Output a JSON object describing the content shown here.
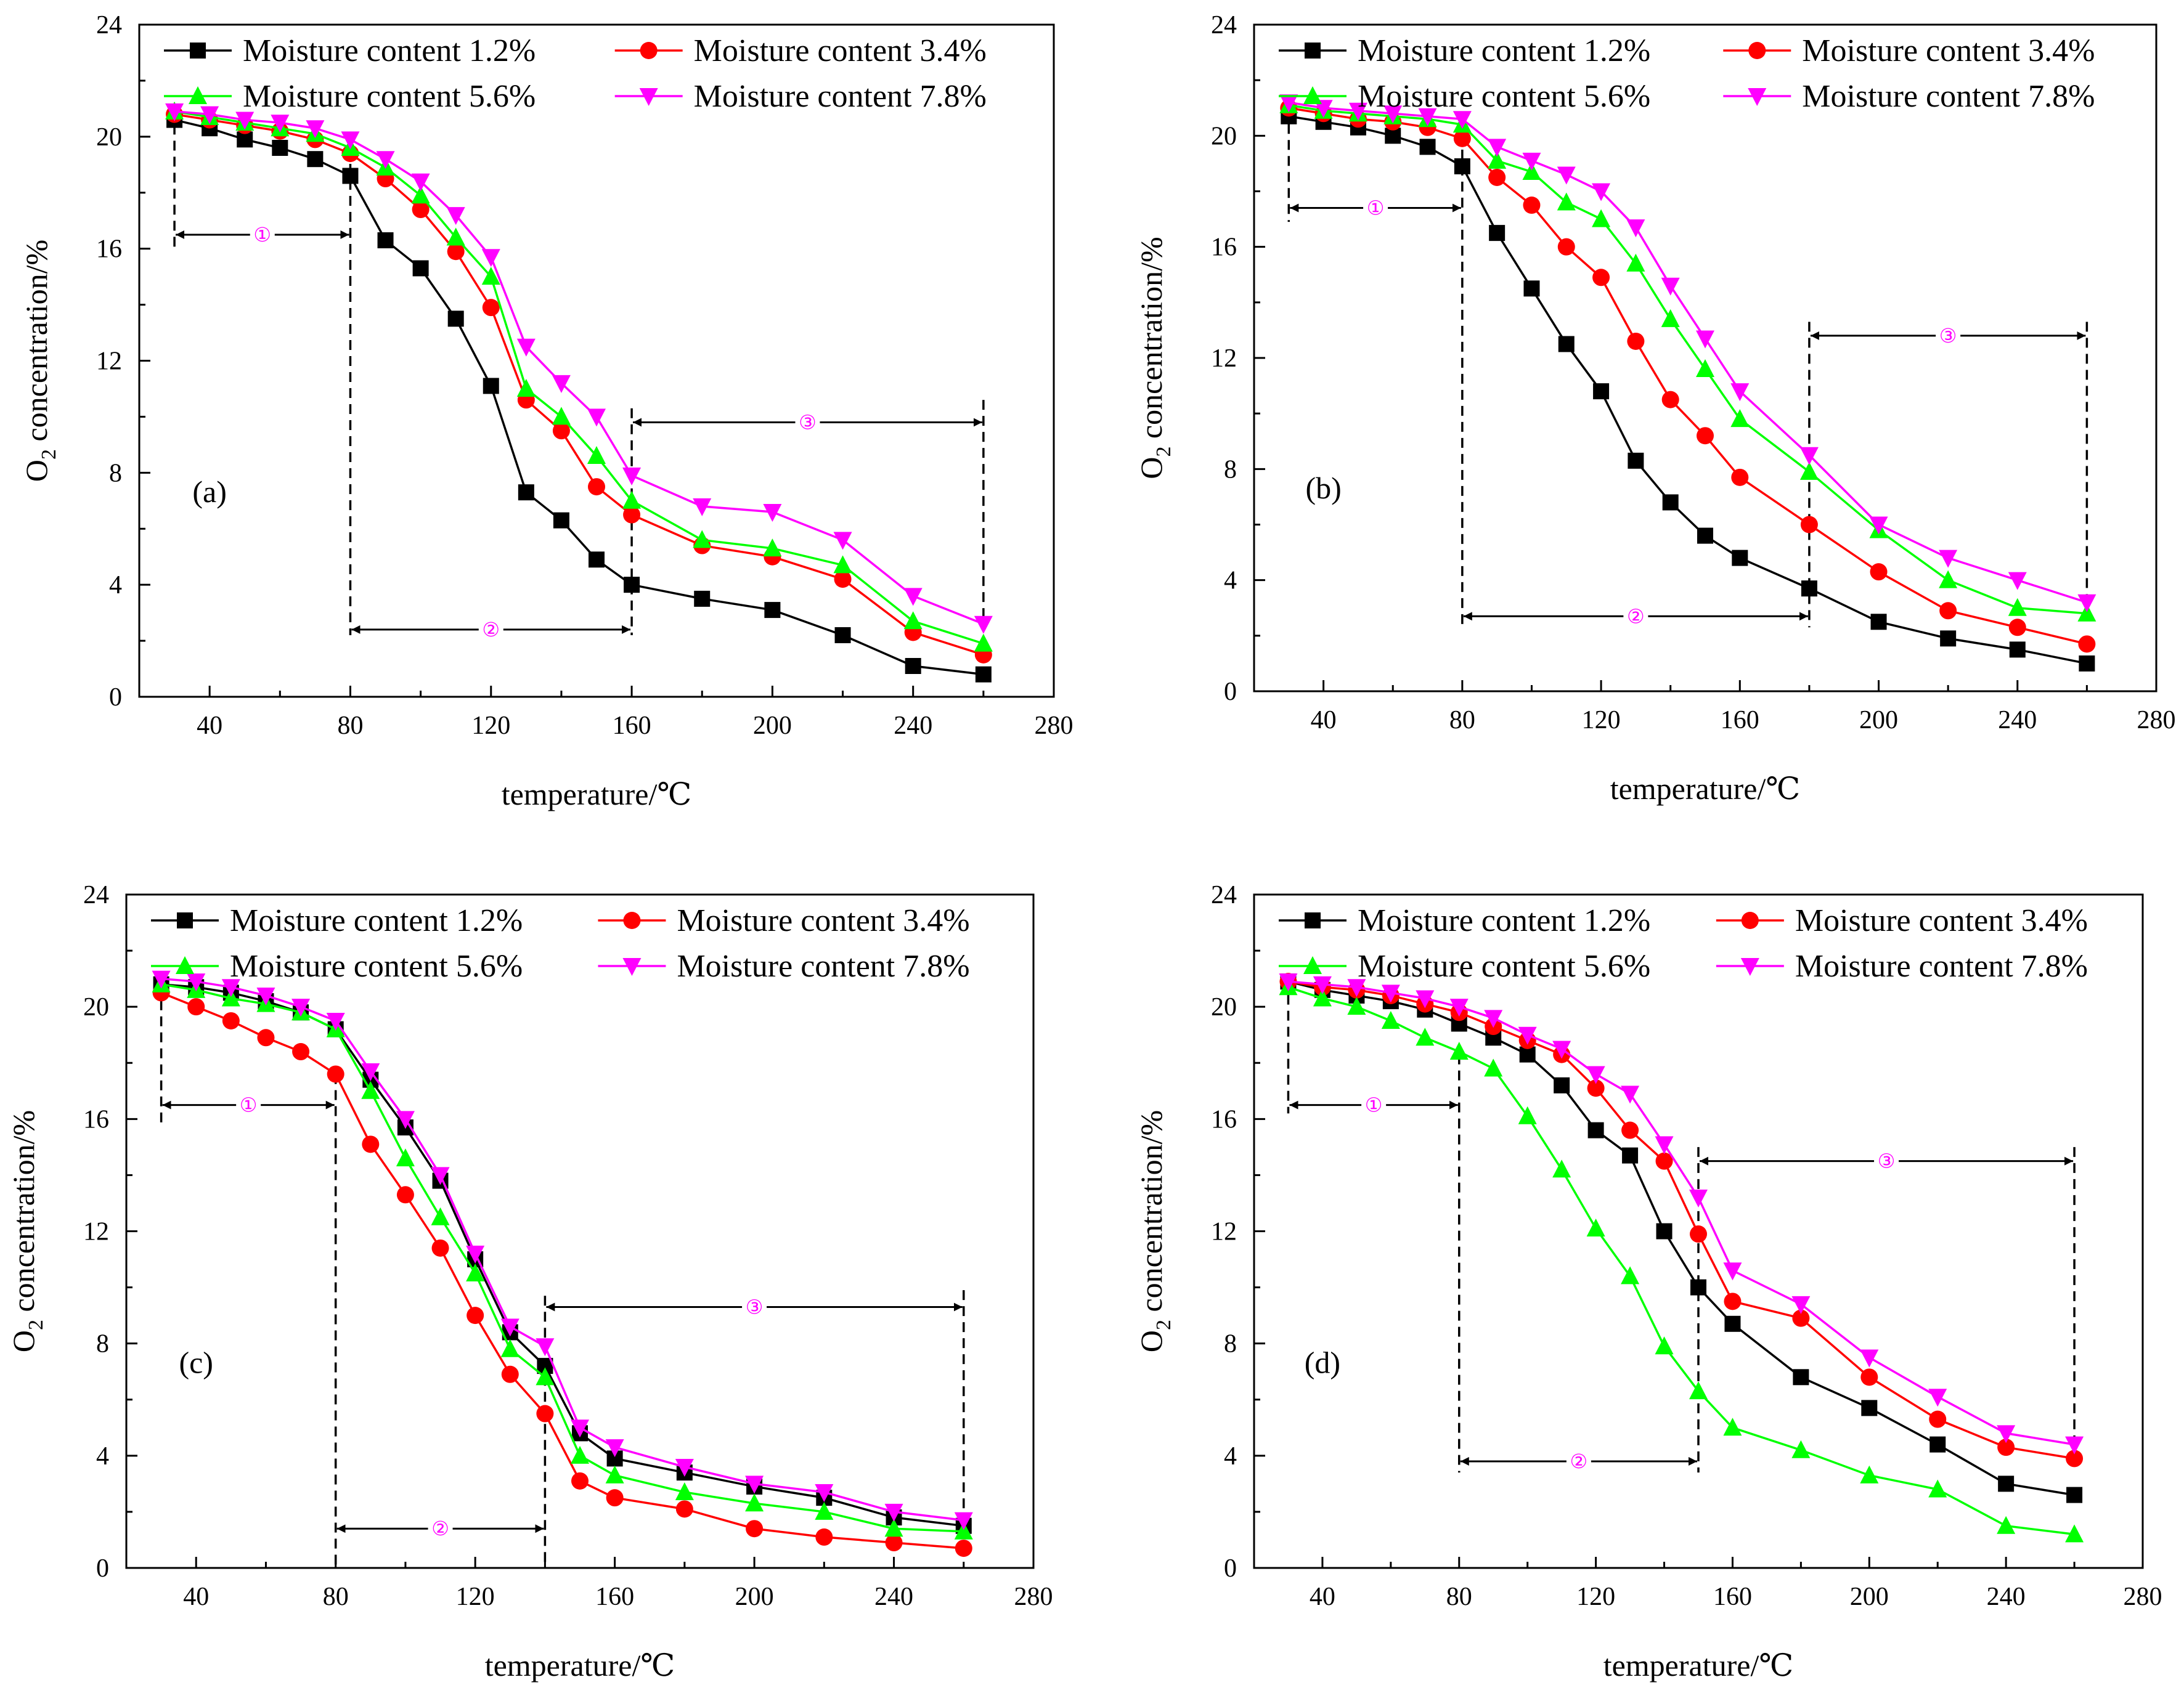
{
  "chart_data": [
    {
      "panel": "(a)",
      "type": "line",
      "xlabel": "temperature/℃",
      "ylabel_main": "O",
      "ylabel_sub": "2",
      "ylabel_rest": " concentration/%",
      "xlim": [
        20,
        280
      ],
      "ylim": [
        0,
        24
      ],
      "xticks": [
        40,
        80,
        120,
        160,
        200,
        240,
        280
      ],
      "yticks": [
        0,
        4,
        8,
        12,
        16,
        20,
        24
      ],
      "legend_position": "top",
      "x": [
        30,
        40,
        50,
        60,
        70,
        80,
        90,
        100,
        110,
        120,
        130,
        140,
        150,
        160,
        180,
        200,
        220,
        240,
        260
      ],
      "series": [
        {
          "name": "Moisture content 1.2%",
          "color": "#000000",
          "marker": "square",
          "values": [
            20.6,
            20.3,
            19.9,
            19.6,
            19.2,
            18.6,
            16.3,
            15.3,
            13.5,
            11.1,
            7.3,
            6.3,
            4.9,
            4.0,
            3.5,
            3.1,
            2.2,
            1.1,
            0.8
          ]
        },
        {
          "name": "Moisture content 3.4%",
          "color": "#ff0000",
          "marker": "circle",
          "values": [
            20.8,
            20.6,
            20.4,
            20.2,
            19.9,
            19.4,
            18.5,
            17.4,
            15.9,
            13.9,
            10.6,
            9.5,
            7.5,
            6.5,
            5.4,
            5.0,
            4.2,
            2.3,
            1.5
          ]
        },
        {
          "name": "Moisture content 5.6%",
          "color": "#00ff00",
          "marker": "triangle-up",
          "values": [
            20.9,
            20.7,
            20.5,
            20.3,
            20.1,
            19.6,
            18.9,
            17.9,
            16.4,
            15.0,
            11.0,
            10.0,
            8.6,
            7.0,
            5.6,
            5.3,
            4.7,
            2.7,
            1.9
          ]
        },
        {
          "name": "Moisture content 7.8%",
          "color": "#ff00ff",
          "marker": "triangle-down",
          "values": [
            20.9,
            20.8,
            20.6,
            20.5,
            20.3,
            19.9,
            19.2,
            18.4,
            17.2,
            15.7,
            12.5,
            11.2,
            10.0,
            7.9,
            6.8,
            6.6,
            5.6,
            3.6,
            2.6
          ]
        }
      ],
      "stages": [
        {
          "label": "①",
          "x0": 30,
          "x1": 80,
          "y": 16.5
        },
        {
          "label": "②",
          "x0": 80,
          "x1": 160,
          "y": 2.4
        },
        {
          "label": "③",
          "x0": 160,
          "x1": 260,
          "y": 9.8
        }
      ],
      "vlines": [
        {
          "x": 30,
          "y0": 16.0,
          "y1": 21.0
        },
        {
          "x": 80,
          "y0": 2.2,
          "y1": 19.6
        },
        {
          "x": 160,
          "y0": 2.2,
          "y1": 10.3
        },
        {
          "x": 260,
          "y0": 2.5,
          "y1": 10.6
        }
      ],
      "panel_label_pos": [
        40,
        7.3
      ]
    },
    {
      "panel": "(b)",
      "type": "line",
      "xlabel": "temperature/℃",
      "ylabel_main": "O",
      "ylabel_sub": "2",
      "ylabel_rest": " concentration/%",
      "xlim": [
        20,
        280
      ],
      "ylim": [
        0,
        24
      ],
      "xticks": [
        40,
        80,
        120,
        160,
        200,
        240,
        280
      ],
      "yticks": [
        0,
        4,
        8,
        12,
        16,
        20,
        24
      ],
      "legend_position": "top",
      "x": [
        30,
        40,
        50,
        60,
        70,
        80,
        90,
        100,
        110,
        120,
        130,
        140,
        150,
        160,
        180,
        200,
        220,
        240,
        260
      ],
      "series": [
        {
          "name": "Moisture content 1.2%",
          "color": "#000000",
          "marker": "square",
          "values": [
            20.7,
            20.5,
            20.3,
            20.0,
            19.6,
            18.9,
            16.5,
            14.5,
            12.5,
            10.8,
            8.3,
            6.8,
            5.6,
            4.8,
            3.7,
            2.5,
            1.9,
            1.5,
            1.0
          ]
        },
        {
          "name": "Moisture content 3.4%",
          "color": "#ff0000",
          "marker": "circle",
          "values": [
            21.0,
            20.8,
            20.6,
            20.5,
            20.3,
            19.9,
            18.5,
            17.5,
            16.0,
            14.9,
            12.6,
            10.5,
            9.2,
            7.7,
            6.0,
            4.3,
            2.9,
            2.3,
            1.7
          ]
        },
        {
          "name": "Moisture content 5.6%",
          "color": "#00ff00",
          "marker": "triangle-up",
          "values": [
            21.1,
            20.9,
            20.8,
            20.7,
            20.6,
            20.4,
            19.1,
            18.7,
            17.6,
            17.0,
            15.4,
            13.4,
            11.6,
            9.8,
            7.9,
            5.8,
            4.0,
            3.0,
            2.8
          ]
        },
        {
          "name": "Moisture content 7.8%",
          "color": "#ff00ff",
          "marker": "triangle-down",
          "values": [
            21.2,
            21.0,
            20.9,
            20.8,
            20.7,
            20.6,
            19.6,
            19.1,
            18.6,
            18.0,
            16.7,
            14.6,
            12.7,
            10.8,
            8.5,
            6.0,
            4.8,
            4.0,
            3.2
          ]
        }
      ],
      "stages": [
        {
          "label": "①",
          "x0": 30,
          "x1": 80,
          "y": 17.4
        },
        {
          "label": "②",
          "x0": 80,
          "x1": 180,
          "y": 2.7
        },
        {
          "label": "③",
          "x0": 180,
          "x1": 260,
          "y": 12.8
        }
      ],
      "vlines": [
        {
          "x": 30,
          "y0": 16.9,
          "y1": 21.0
        },
        {
          "x": 80,
          "y0": 2.3,
          "y1": 19.5
        },
        {
          "x": 180,
          "y0": 2.3,
          "y1": 13.3
        },
        {
          "x": 260,
          "y0": 2.7,
          "y1": 13.3
        }
      ],
      "panel_label_pos": [
        40,
        7.3
      ]
    },
    {
      "panel": "(c)",
      "type": "line",
      "xlabel": "temperature/℃",
      "ylabel_main": "O",
      "ylabel_sub": "2",
      "ylabel_rest": " concentration/%",
      "xlim": [
        20,
        280
      ],
      "ylim": [
        0,
        24
      ],
      "xticks": [
        40,
        80,
        120,
        160,
        200,
        240,
        280
      ],
      "yticks": [
        0,
        4,
        8,
        12,
        16,
        20,
        24
      ],
      "legend_position": "top",
      "x": [
        30,
        40,
        50,
        60,
        70,
        80,
        90,
        100,
        110,
        120,
        130,
        140,
        150,
        160,
        180,
        200,
        220,
        240,
        260
      ],
      "series": [
        {
          "name": "Moisture content 1.2%",
          "color": "#000000",
          "marker": "square",
          "values": [
            20.8,
            20.7,
            20.5,
            20.2,
            19.8,
            19.2,
            17.4,
            15.7,
            13.8,
            11.0,
            8.4,
            7.2,
            4.8,
            3.9,
            3.4,
            2.9,
            2.5,
            1.8,
            1.5
          ]
        },
        {
          "name": "Moisture content 3.4%",
          "color": "#ff0000",
          "marker": "circle",
          "values": [
            20.5,
            20.0,
            19.5,
            18.9,
            18.4,
            17.6,
            15.1,
            13.3,
            11.4,
            9.0,
            6.9,
            5.5,
            3.1,
            2.5,
            2.1,
            1.4,
            1.1,
            0.9,
            0.7
          ]
        },
        {
          "name": "Moisture content 5.6%",
          "color": "#00ff00",
          "marker": "triangle-up",
          "values": [
            20.8,
            20.6,
            20.3,
            20.1,
            19.8,
            19.2,
            17.0,
            14.6,
            12.5,
            10.5,
            7.8,
            6.8,
            4.0,
            3.3,
            2.7,
            2.3,
            2.0,
            1.4,
            1.3
          ]
        },
        {
          "name": "Moisture content 7.8%",
          "color": "#ff00ff",
          "marker": "triangle-down",
          "values": [
            21.0,
            20.9,
            20.7,
            20.4,
            20.0,
            19.5,
            17.7,
            16.0,
            14.0,
            11.2,
            8.6,
            7.9,
            5.0,
            4.3,
            3.6,
            3.0,
            2.7,
            2.0,
            1.7
          ]
        }
      ],
      "stages": [
        {
          "label": "①",
          "x0": 30,
          "x1": 80,
          "y": 16.5
        },
        {
          "label": "②",
          "x0": 80,
          "x1": 140,
          "y": 1.4
        },
        {
          "label": "③",
          "x0": 140,
          "x1": 260,
          "y": 9.3
        }
      ],
      "vlines": [
        {
          "x": 30,
          "y0": 15.8,
          "y1": 20.8
        },
        {
          "x": 80,
          "y0": 0.0,
          "y1": 17.6
        },
        {
          "x": 140,
          "y0": 0.0,
          "y1": 9.7
        },
        {
          "x": 260,
          "y0": 1.3,
          "y1": 9.9
        }
      ],
      "panel_label_pos": [
        40,
        7.3
      ]
    },
    {
      "panel": "(d)",
      "type": "line",
      "xlabel": "temperature/℃",
      "ylabel_main": "O",
      "ylabel_sub": "2",
      "ylabel_rest": " concentration/%",
      "xlim": [
        20,
        280
      ],
      "ylim": [
        0,
        24
      ],
      "xticks": [
        40,
        80,
        120,
        160,
        200,
        240,
        280
      ],
      "yticks": [
        0,
        4,
        8,
        12,
        16,
        20,
        24
      ],
      "legend_position": "top",
      "x": [
        30,
        40,
        50,
        60,
        70,
        80,
        90,
        100,
        110,
        120,
        130,
        140,
        150,
        160,
        180,
        200,
        220,
        240,
        260
      ],
      "series": [
        {
          "name": "Moisture content 1.2%",
          "color": "#000000",
          "marker": "square",
          "values": [
            20.9,
            20.6,
            20.4,
            20.2,
            19.9,
            19.4,
            18.9,
            18.3,
            17.2,
            15.6,
            14.7,
            12.0,
            10.0,
            8.7,
            6.8,
            5.7,
            4.4,
            3.0,
            2.6
          ]
        },
        {
          "name": "Moisture content 3.4%",
          "color": "#ff0000",
          "marker": "circle",
          "values": [
            20.9,
            20.7,
            20.6,
            20.4,
            20.1,
            19.8,
            19.3,
            18.8,
            18.3,
            17.1,
            15.6,
            14.5,
            11.9,
            9.5,
            8.9,
            6.8,
            5.3,
            4.3,
            3.9
          ]
        },
        {
          "name": "Moisture content 5.6%",
          "color": "#00ff00",
          "marker": "triangle-up",
          "values": [
            20.7,
            20.3,
            20.0,
            19.5,
            18.9,
            18.4,
            17.8,
            16.1,
            14.2,
            12.1,
            10.4,
            7.9,
            6.3,
            5.0,
            4.2,
            3.3,
            2.8,
            1.5,
            1.2
          ]
        },
        {
          "name": "Moisture content 7.8%",
          "color": "#ff00ff",
          "marker": "triangle-down",
          "values": [
            20.9,
            20.8,
            20.7,
            20.5,
            20.3,
            20.0,
            19.6,
            19.0,
            18.5,
            17.6,
            16.9,
            15.1,
            13.2,
            10.6,
            9.4,
            7.5,
            6.1,
            4.8,
            4.4
          ]
        }
      ],
      "stages": [
        {
          "label": "①",
          "x0": 30,
          "x1": 80,
          "y": 16.5
        },
        {
          "label": "②",
          "x0": 80,
          "x1": 150,
          "y": 3.8
        },
        {
          "label": "③",
          "x0": 150,
          "x1": 260,
          "y": 14.5
        }
      ],
      "vlines": [
        {
          "x": 30,
          "y0": 16.2,
          "y1": 21.0
        },
        {
          "x": 80,
          "y0": 3.4,
          "y1": 18.3
        },
        {
          "x": 150,
          "y0": 3.4,
          "y1": 15.0
        },
        {
          "x": 260,
          "y0": 4.4,
          "y1": 15.0
        }
      ],
      "panel_label_pos": [
        40,
        7.3
      ]
    }
  ]
}
